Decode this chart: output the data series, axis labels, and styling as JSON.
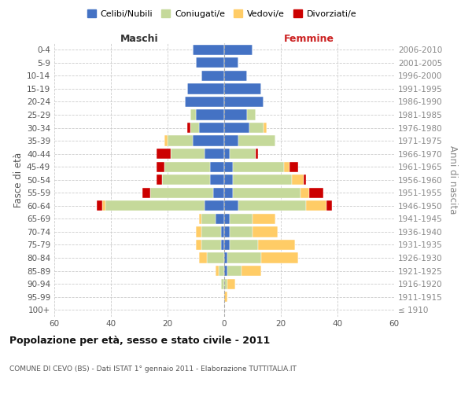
{
  "age_groups": [
    "100+",
    "95-99",
    "90-94",
    "85-89",
    "80-84",
    "75-79",
    "70-74",
    "65-69",
    "60-64",
    "55-59",
    "50-54",
    "45-49",
    "40-44",
    "35-39",
    "30-34",
    "25-29",
    "20-24",
    "15-19",
    "10-14",
    "5-9",
    "0-4"
  ],
  "birth_years": [
    "≤ 1910",
    "1911-1915",
    "1916-1920",
    "1921-1925",
    "1926-1930",
    "1931-1935",
    "1936-1940",
    "1941-1945",
    "1946-1950",
    "1951-1955",
    "1956-1960",
    "1961-1965",
    "1966-1970",
    "1971-1975",
    "1976-1980",
    "1981-1985",
    "1986-1990",
    "1991-1995",
    "1996-2000",
    "2001-2005",
    "2006-2010"
  ],
  "male_celibi": [
    0,
    0,
    0,
    0,
    0,
    1,
    1,
    3,
    7,
    4,
    5,
    5,
    7,
    11,
    9,
    10,
    14,
    13,
    8,
    10,
    11
  ],
  "male_coniugati": [
    0,
    0,
    1,
    2,
    6,
    7,
    7,
    5,
    35,
    22,
    17,
    16,
    12,
    9,
    3,
    2,
    0,
    0,
    0,
    0,
    0
  ],
  "male_vedovi": [
    0,
    0,
    0,
    1,
    3,
    2,
    2,
    1,
    1,
    0,
    0,
    0,
    0,
    1,
    0,
    0,
    0,
    0,
    0,
    0,
    0
  ],
  "male_divorziati": [
    0,
    0,
    0,
    0,
    0,
    0,
    0,
    0,
    2,
    3,
    2,
    3,
    5,
    0,
    1,
    0,
    0,
    0,
    0,
    0,
    0
  ],
  "female_nubili": [
    0,
    0,
    0,
    1,
    1,
    2,
    2,
    2,
    5,
    3,
    3,
    3,
    2,
    5,
    9,
    8,
    14,
    13,
    8,
    5,
    10
  ],
  "female_coniugate": [
    0,
    0,
    1,
    5,
    12,
    10,
    8,
    8,
    24,
    24,
    21,
    18,
    9,
    13,
    5,
    3,
    0,
    0,
    0,
    0,
    0
  ],
  "female_vedove": [
    0,
    1,
    3,
    7,
    13,
    13,
    9,
    8,
    7,
    3,
    4,
    2,
    0,
    0,
    1,
    0,
    0,
    0,
    0,
    0,
    0
  ],
  "female_divorziate": [
    0,
    0,
    0,
    0,
    0,
    0,
    0,
    0,
    2,
    5,
    1,
    3,
    1,
    0,
    0,
    0,
    0,
    0,
    0,
    0,
    0
  ],
  "color_celibi": "#4472C4",
  "color_coniugati": "#C5D99A",
  "color_vedovi": "#FFCC66",
  "color_divorziati": "#CC0000",
  "xlim": 60,
  "title": "Popolazione per età, sesso e stato civile - 2011",
  "subtitle": "COMUNE DI CEVO (BS) - Dati ISTAT 1° gennaio 2011 - Elaborazione TUTTITALIA.IT",
  "ylabel_left": "Fasce di età",
  "ylabel_right": "Anni di nascita",
  "xlabel_left": "Maschi",
  "xlabel_right": "Femmine"
}
